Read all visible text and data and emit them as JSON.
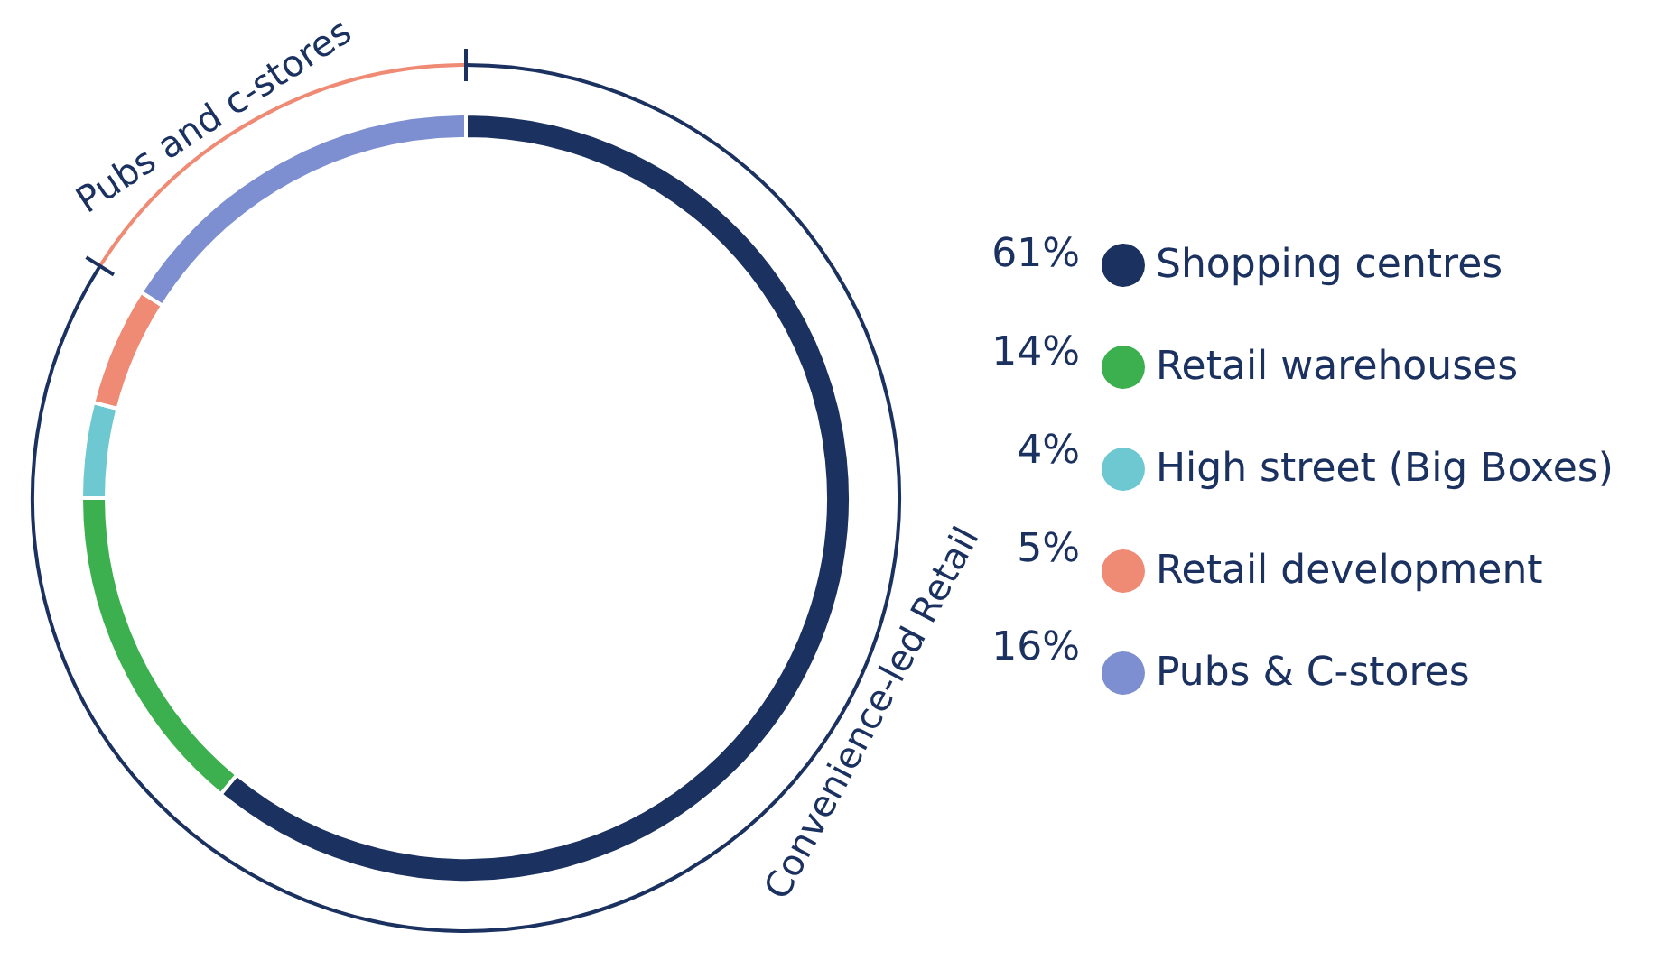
{
  "chart_data": {
    "type": "donut",
    "categories": [
      "Shopping centres",
      "Retail warehouses",
      "High street (Big Boxes)",
      "Retail development",
      "Pubs & C-stores"
    ],
    "values": [
      61,
      14,
      4,
      5,
      16
    ],
    "value_labels": [
      "61%",
      "14%",
      "4%",
      "5%",
      "16%"
    ],
    "colors": [
      "#1b3160",
      "#3cb04e",
      "#6ec8d2",
      "#ef8a74",
      "#7d8fd0"
    ],
    "legend": "right",
    "annotations": [
      "Pubs and c-stores",
      "Convenience-led Retail"
    ]
  }
}
